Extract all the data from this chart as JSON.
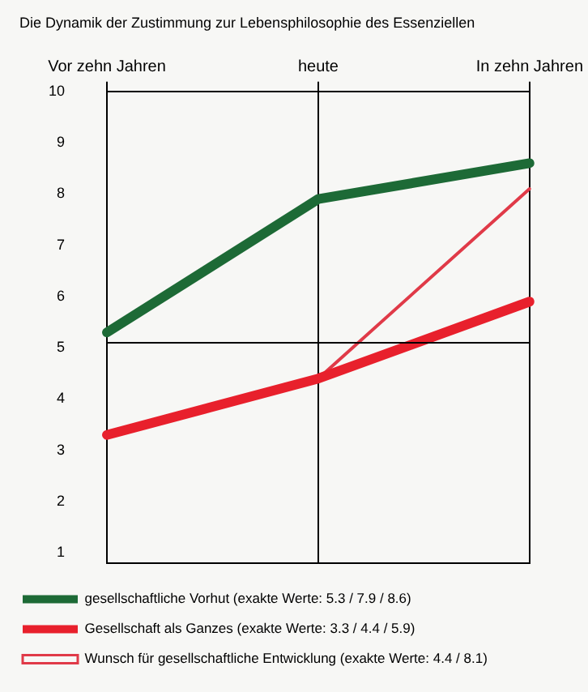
{
  "chart_data": {
    "type": "line",
    "title": "Die Dynamik der Zustimmung zur Lebensphilosophie des Essenziellen",
    "categories": [
      "Vor zehn Jahren",
      "heute",
      "In zehn Jahren"
    ],
    "series": [
      {
        "name": "gesellschaftliche Vorhut (exakte Werte: 5.3 / 7.9 / 8.6)",
        "color": "#1d6a36",
        "values": [
          5.3,
          7.9,
          8.6
        ]
      },
      {
        "name": "Gesellschaft als Ganzes (exakte Werte: 3.3 / 4.4 / 5.9)",
        "color": "#e8202c",
        "values": [
          3.3,
          4.4,
          5.9
        ]
      },
      {
        "name": "Wunsch für gesellschaftliche Entwicklung (exakte Werte: 4.4 / 8.1)",
        "color": "#e03a48",
        "values": [
          null,
          4.4,
          8.1
        ]
      }
    ],
    "ylim": [
      0.8,
      10
    ],
    "yticks": [
      1,
      2,
      3,
      4,
      5,
      6,
      7,
      8,
      9,
      10
    ],
    "ref_lines": [
      {
        "axis": "y",
        "value": 5.1,
        "color": "#000000"
      }
    ],
    "grid": "x",
    "legend": "bottom",
    "marker": "none",
    "line_style": "solid"
  }
}
